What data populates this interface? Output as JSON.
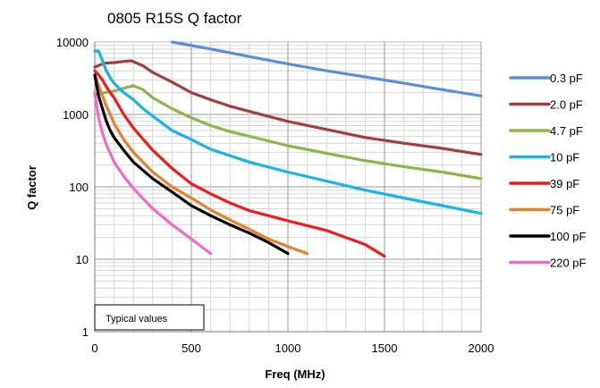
{
  "chart_data": {
    "type": "line",
    "title": "0805 R15S Q factor",
    "xlabel": "Freq (MHz)",
    "ylabel": "Q factor",
    "x_scale": "linear",
    "y_scale": "log",
    "xlim": [
      0,
      2000
    ],
    "ylim": [
      1,
      10000
    ],
    "x_ticks": [
      0,
      500,
      1000,
      1500,
      2000
    ],
    "y_ticks": [
      1,
      10,
      100,
      1000,
      10000
    ],
    "grid": "major and minor gridlines",
    "legend_position": "right",
    "annotation": "Typical values",
    "series": [
      {
        "name": "0.3 pF",
        "color": "#5b8fd3",
        "x": [
          400,
          600,
          800,
          1000,
          1200,
          1400,
          1600,
          1800,
          2000
        ],
        "y": [
          10000,
          8000,
          6300,
          5000,
          4000,
          3300,
          2700,
          2200,
          1800
        ]
      },
      {
        "name": "2.0 pF",
        "color": "#a0403e",
        "x": [
          0,
          50,
          100,
          150,
          190,
          250,
          300,
          400,
          500,
          600,
          700,
          800,
          1000,
          1200,
          1400,
          1600,
          1800,
          2000
        ],
        "y": [
          4500,
          5100,
          5200,
          5400,
          5500,
          4700,
          3800,
          2800,
          2000,
          1600,
          1300,
          1100,
          800,
          620,
          480,
          400,
          340,
          280
        ]
      },
      {
        "name": "4.7 pF",
        "color": "#8db54c",
        "x": [
          0,
          20,
          50,
          100,
          150,
          200,
          250,
          300,
          400,
          500,
          600,
          700,
          800,
          1000,
          1200,
          1400,
          1600,
          1800,
          2000
        ],
        "y": [
          1800,
          1900,
          2000,
          2100,
          2300,
          2500,
          2200,
          1700,
          1200,
          900,
          700,
          580,
          500,
          370,
          290,
          230,
          190,
          160,
          130
        ]
      },
      {
        "name": "10 pF",
        "color": "#19b3e6",
        "x": [
          0,
          20,
          40,
          60,
          80,
          100,
          150,
          200,
          250,
          300,
          400,
          500,
          600,
          700,
          800,
          1000,
          1200,
          1400,
          1600,
          1800,
          2000
        ],
        "y": [
          7500,
          7500,
          5500,
          4000,
          3200,
          2700,
          2000,
          1600,
          1200,
          950,
          600,
          450,
          330,
          270,
          220,
          160,
          120,
          90,
          70,
          55,
          43
        ]
      },
      {
        "name": "39 pF",
        "color": "#ee1c1c",
        "x": [
          0,
          20,
          40,
          60,
          80,
          100,
          150,
          200,
          300,
          400,
          500,
          600,
          700,
          800,
          1000,
          1200,
          1400,
          1500
        ],
        "y": [
          4000,
          3500,
          3000,
          2400,
          2000,
          1700,
          1000,
          650,
          320,
          180,
          110,
          80,
          60,
          47,
          34,
          25,
          16,
          11
        ]
      },
      {
        "name": "75 pF",
        "color": "#e6822e",
        "x": [
          0,
          20,
          40,
          60,
          80,
          100,
          150,
          200,
          300,
          400,
          500,
          600,
          700,
          800,
          900,
          1000,
          1100
        ],
        "y": [
          3500,
          2500,
          1800,
          1300,
          1000,
          750,
          450,
          300,
          160,
          100,
          70,
          48,
          35,
          26,
          19,
          15,
          12
        ]
      },
      {
        "name": "100 pF",
        "color": "#000000",
        "x": [
          0,
          20,
          40,
          60,
          80,
          100,
          150,
          200,
          300,
          400,
          500,
          600,
          700,
          800,
          900,
          1000
        ],
        "y": [
          3500,
          1800,
          1200,
          800,
          600,
          480,
          320,
          220,
          130,
          85,
          55,
          40,
          30,
          23,
          17,
          12
        ]
      },
      {
        "name": "220 pF",
        "color": "#f06bc8",
        "x": [
          0,
          20,
          40,
          60,
          80,
          100,
          150,
          200,
          300,
          400,
          500,
          600
        ],
        "y": [
          2000,
          900,
          550,
          380,
          290,
          220,
          140,
          95,
          50,
          30,
          19,
          12
        ]
      }
    ]
  }
}
